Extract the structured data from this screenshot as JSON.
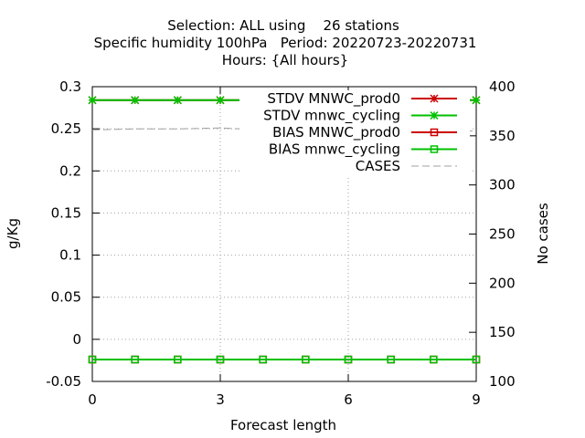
{
  "chart_data": {
    "type": "line",
    "title": [
      "Selection: ALL using    26 stations",
      "Specific humidity 100hPa   Period: 20220723-20220731",
      "Hours: {All hours}"
    ],
    "xlabel": "Forecast length",
    "ylabel": "g/Kg",
    "y2label": "No cases",
    "xlim": [
      0,
      9
    ],
    "ylim": [
      -0.05,
      0.3
    ],
    "y2lim": [
      100,
      400
    ],
    "xticks": [
      "0",
      "3",
      "6",
      "9"
    ],
    "xtick_values": [
      0,
      3,
      6,
      9
    ],
    "yticks": [
      "-0.05",
      "0",
      "0.05",
      "0.1",
      "0.15",
      "0.2",
      "0.25",
      "0.3"
    ],
    "ytick_values": [
      -0.05,
      0,
      0.05,
      0.1,
      0.15,
      0.2,
      0.25,
      0.3
    ],
    "y2ticks": [
      "100",
      "150",
      "200",
      "250",
      "300",
      "350",
      "400"
    ],
    "y2tick_values": [
      100,
      150,
      200,
      250,
      300,
      350,
      400
    ],
    "grid": true,
    "legend_position": "top-right",
    "x": [
      0,
      1,
      2,
      3,
      4,
      5,
      6,
      7,
      8,
      9
    ],
    "series": [
      {
        "name": "STDV MNWC_prod0",
        "axis": "y",
        "color": "#cc0000",
        "marker": "asterisk",
        "values": [
          0.284,
          0.284,
          0.284,
          0.284,
          0.284,
          0.284,
          0.284,
          0.284,
          0.284,
          0.284
        ]
      },
      {
        "name": "STDV mnwc_cycling",
        "axis": "y",
        "color": "#00c000",
        "marker": "asterisk",
        "values": [
          0.284,
          0.284,
          0.284,
          0.284,
          0.284,
          0.284,
          0.284,
          0.284,
          0.284,
          0.284
        ]
      },
      {
        "name": "BIAS MNWC_prod0",
        "axis": "y",
        "color": "#cc0000",
        "marker": "square",
        "values": [
          -0.024,
          -0.024,
          -0.024,
          -0.024,
          -0.024,
          -0.024,
          -0.024,
          -0.024,
          -0.024,
          -0.024
        ]
      },
      {
        "name": "BIAS mnwc_cycling",
        "axis": "y",
        "color": "#00c000",
        "marker": "square",
        "values": [
          -0.024,
          -0.024,
          -0.024,
          -0.024,
          -0.024,
          -0.024,
          -0.024,
          -0.024,
          -0.024,
          -0.024
        ]
      },
      {
        "name": "CASES",
        "axis": "y2",
        "color": "#a0a0a0",
        "marker": "none",
        "dashed": true,
        "values": [
          356,
          357,
          357,
          358,
          356,
          356,
          355,
          355,
          354,
          355
        ]
      }
    ]
  }
}
